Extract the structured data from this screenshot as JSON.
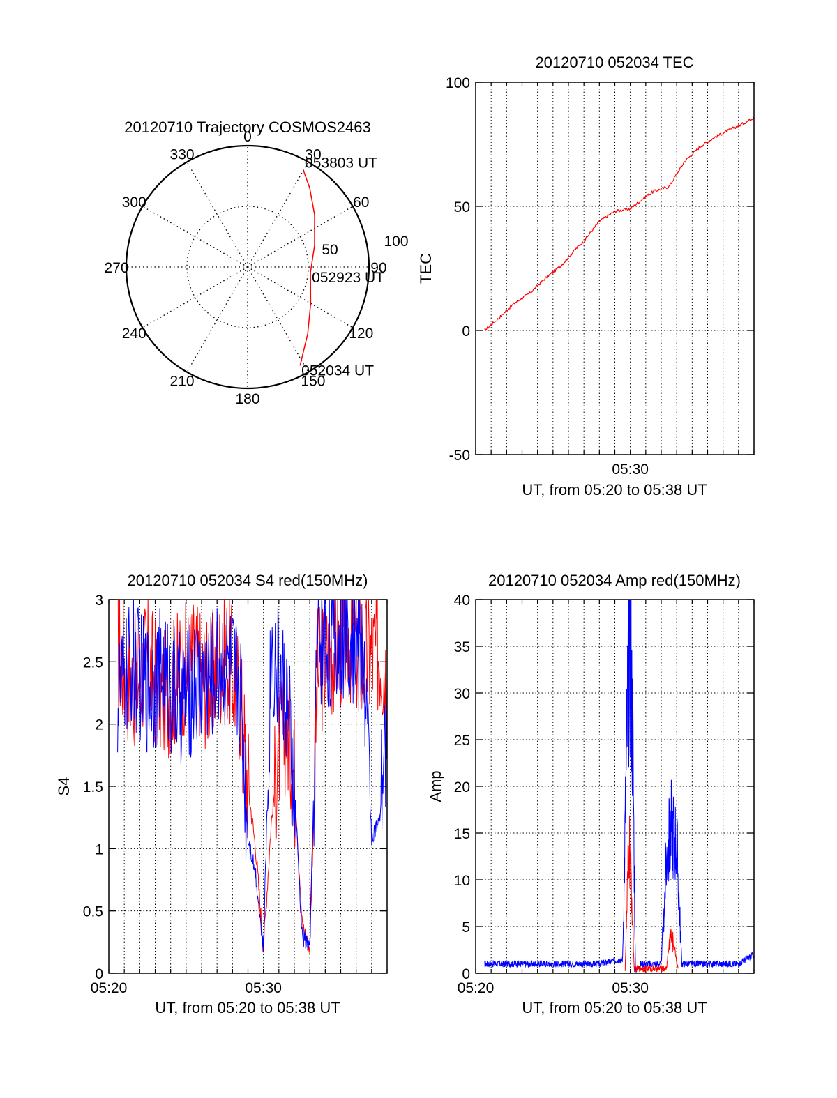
{
  "chart_data": [
    {
      "type": "polar",
      "title": "20120710 Trajectory COSMOS2463",
      "angle_ticks": [
        "0",
        "30",
        "60",
        "90",
        "120",
        "150",
        "180",
        "210",
        "240",
        "270",
        "300",
        "330"
      ],
      "radial_ticks": [
        "50",
        "100"
      ],
      "rlim": [
        0,
        100
      ],
      "grid": true,
      "series": [
        {
          "color": "#ff0000",
          "points": [
            {
              "az": 152,
              "r": 92
            },
            {
              "az": 138,
              "r": 74
            },
            {
              "az": 120,
              "r": 60
            },
            {
              "az": 95,
              "r": 52
            },
            {
              "az": 72,
              "r": 58
            },
            {
              "az": 52,
              "r": 70
            },
            {
              "az": 38,
              "r": 83
            },
            {
              "az": 30,
              "r": 92
            }
          ]
        }
      ],
      "annotations": [
        {
          "text": "053803 UT",
          "az": 30,
          "r": 92
        },
        {
          "text": "052923 UT",
          "az": 95,
          "r": 52
        },
        {
          "text": "052034 UT",
          "az": 152,
          "r": 92
        }
      ]
    },
    {
      "type": "line",
      "title": "20120710 052034 TEC",
      "xlabel": "UT, from 05:20 to 05:38 UT",
      "ylabel": "TEC",
      "xlim": [
        "05:20",
        "05:38"
      ],
      "x_tick_labels": [
        "05:30"
      ],
      "ylim": [
        -50,
        100
      ],
      "y_ticks": [
        "-50",
        "0",
        "50",
        "100"
      ],
      "grid": true,
      "series": [
        {
          "color": "#ff0000",
          "x": [
            "05:20:34",
            "05:21:30",
            "05:22:30",
            "05:23:30",
            "05:24:30",
            "05:25:30",
            "05:26:30",
            "05:27:00",
            "05:28:00",
            "05:29:00",
            "05:30:00",
            "05:31:00",
            "05:31:30",
            "05:32:30",
            "05:33:30",
            "05:34:30",
            "05:35:30",
            "05:36:30",
            "05:37:30",
            "05:38:00"
          ],
          "values": [
            0,
            5,
            11,
            15,
            21,
            26,
            33,
            36,
            44,
            48,
            49,
            54,
            56,
            58,
            68,
            74,
            78,
            81,
            84,
            86
          ]
        }
      ]
    },
    {
      "type": "line",
      "title": "20120710 052034 S4 red(150MHz)",
      "xlabel": "UT, from 05:20 to 05:38 UT",
      "ylabel": "S4",
      "xlim": [
        "05:20",
        "05:38"
      ],
      "x_tick_labels": [
        "05:20",
        "05:30"
      ],
      "ylim": [
        0,
        3
      ],
      "y_ticks": [
        "0",
        "0.5",
        "1",
        "1.5",
        "2",
        "2.5",
        "3"
      ],
      "grid": true,
      "series": [
        {
          "color": "#ff0000",
          "x": [
            "05:20:34",
            "05:21:30",
            "05:22:30",
            "05:23:30",
            "05:24:30",
            "05:25:30",
            "05:26:30",
            "05:27:30",
            "05:28:30",
            "05:29:00",
            "05:29:30",
            "05:30:00",
            "05:30:30",
            "05:31:00",
            "05:31:30",
            "05:32:00",
            "05:32:30",
            "05:33:00",
            "05:33:30",
            "05:34:30",
            "05:35:30",
            "05:36:30",
            "05:37:30",
            "05:38:00"
          ],
          "values": [
            2.6,
            2.3,
            2.5,
            2.2,
            2.4,
            2.5,
            2.3,
            2.6,
            2.2,
            1.5,
            1.0,
            0.2,
            1.2,
            1.8,
            2.0,
            1.6,
            0.4,
            0.2,
            2.4,
            2.6,
            2.7,
            2.5,
            2.6,
            2.4
          ]
        },
        {
          "color": "#0000ff",
          "x": [
            "05:20:34",
            "05:21:30",
            "05:22:30",
            "05:23:30",
            "05:24:30",
            "05:25:30",
            "05:26:30",
            "05:27:30",
            "05:28:30",
            "05:29:00",
            "05:29:30",
            "05:30:00",
            "05:30:30",
            "05:31:00",
            "05:31:30",
            "05:32:00",
            "05:32:30",
            "05:33:00",
            "05:33:30",
            "05:34:30",
            "05:35:30",
            "05:36:30",
            "05:37:00",
            "05:37:30",
            "05:38:00"
          ],
          "values": [
            2.2,
            2.5,
            2.3,
            2.4,
            2.2,
            2.3,
            2.4,
            2.5,
            2.3,
            1.1,
            0.8,
            0.18,
            2.6,
            2.4,
            2.2,
            1.5,
            0.3,
            0.2,
            2.7,
            2.6,
            2.8,
            2.5,
            1.1,
            1.2,
            2.0
          ]
        }
      ]
    },
    {
      "type": "line",
      "title": "20120710 052034 Amp red(150MHz)",
      "xlabel": "UT, from 05:20 to 05:38 UT",
      "ylabel": "Amp",
      "xlim": [
        "05:20",
        "05:38"
      ],
      "x_tick_labels": [
        "05:20",
        "05:30"
      ],
      "ylim": [
        0,
        40
      ],
      "y_ticks": [
        "0",
        "5",
        "10",
        "15",
        "20",
        "25",
        "30",
        "35",
        "40"
      ],
      "grid": true,
      "series": [
        {
          "color": "#0000ff",
          "x": [
            "05:20:34",
            "05:22:00",
            "05:24:00",
            "05:26:00",
            "05:28:00",
            "05:29:30",
            "05:29:50",
            "05:30:00",
            "05:30:10",
            "05:30:20",
            "05:30:40",
            "05:31:30",
            "05:32:00",
            "05:32:20",
            "05:32:40",
            "05:33:00",
            "05:33:20",
            "05:34:00",
            "05:35:00",
            "05:36:00",
            "05:37:00",
            "05:38:00"
          ],
          "values": [
            1,
            1,
            1,
            1,
            1,
            1.5,
            30,
            36,
            25,
            0.3,
            1,
            1,
            1,
            12,
            16,
            14,
            1,
            1,
            1,
            1,
            1,
            2
          ]
        },
        {
          "color": "#ff0000",
          "x": [
            "05:29:40",
            "05:29:55",
            "05:30:05",
            "05:30:15",
            "05:32:20",
            "05:32:35",
            "05:32:50",
            "05:33:05"
          ],
          "values": [
            0.5,
            14,
            9,
            0.5,
            0.5,
            4,
            3,
            0.5
          ]
        }
      ]
    }
  ]
}
